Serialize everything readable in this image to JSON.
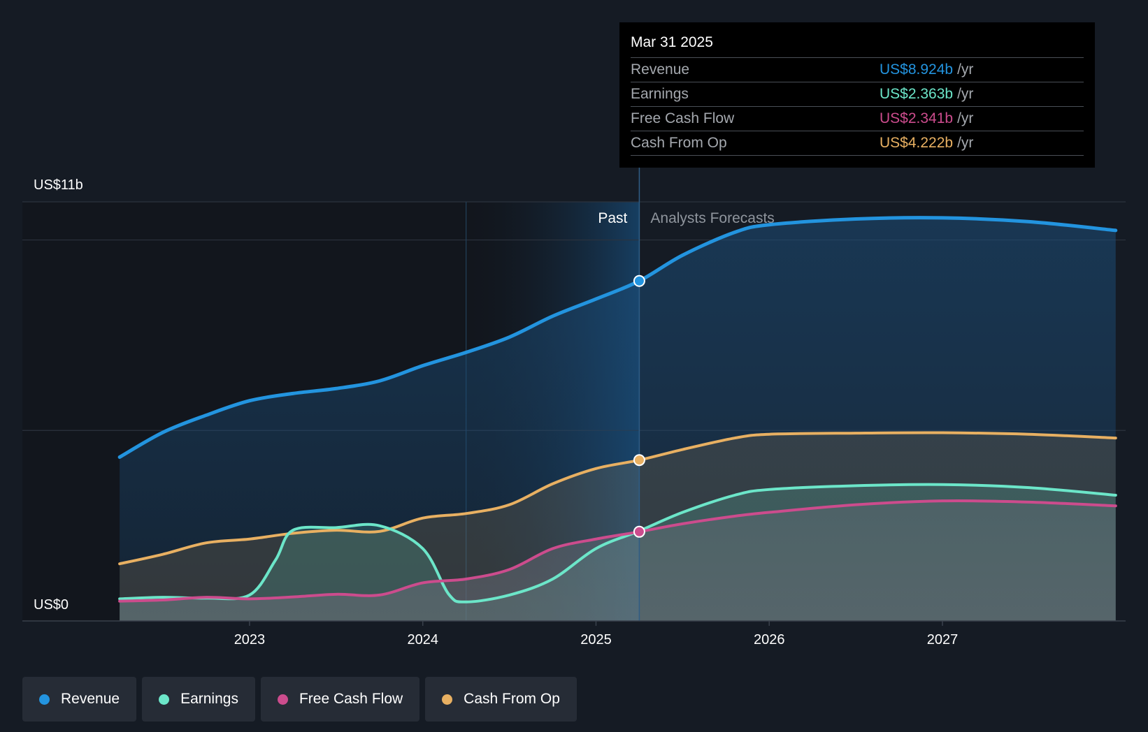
{
  "chart_data": {
    "type": "line",
    "y_max_label": "US$11b",
    "y_min_label": "US$0",
    "ylim": [
      0,
      11
    ],
    "divider_x": 2025.25,
    "past_label": "Past",
    "forecast_label": "Analysts Forecasts",
    "x_ticks": [
      2023,
      2024,
      2025,
      2026,
      2027
    ],
    "x_tick_labels": [
      "2023",
      "2024",
      "2025",
      "2026",
      "2027"
    ],
    "series": [
      {
        "name": "Revenue",
        "color": "#2394df",
        "x": [
          2022.25,
          2022.5,
          2022.75,
          2023.0,
          2023.25,
          2023.5,
          2023.75,
          2024.0,
          2024.25,
          2024.5,
          2024.75,
          2025.0,
          2025.25,
          2025.5,
          2025.8,
          2026.0,
          2026.5,
          2027.0,
          2027.5,
          2028.0
        ],
        "values": [
          4.3,
          4.95,
          5.4,
          5.78,
          5.97,
          6.1,
          6.3,
          6.7,
          7.05,
          7.45,
          8.0,
          8.45,
          8.924,
          9.6,
          10.2,
          10.4,
          10.55,
          10.58,
          10.48,
          10.25
        ]
      },
      {
        "name": "Earnings",
        "color": "#6ce6c9",
        "x": [
          2022.25,
          2022.5,
          2022.75,
          2023.0,
          2023.15,
          2023.25,
          2023.5,
          2023.75,
          2024.0,
          2024.15,
          2024.25,
          2024.5,
          2024.75,
          2025.0,
          2025.25,
          2025.5,
          2025.8,
          2026.0,
          2026.5,
          2027.0,
          2027.5,
          2028.0
        ],
        "values": [
          0.58,
          0.62,
          0.6,
          0.68,
          1.6,
          2.38,
          2.45,
          2.5,
          1.9,
          0.7,
          0.5,
          0.68,
          1.1,
          1.9,
          2.363,
          2.85,
          3.3,
          3.45,
          3.55,
          3.58,
          3.5,
          3.3
        ]
      },
      {
        "name": "Free Cash Flow",
        "color": "#cc4c8d",
        "x": [
          2022.25,
          2022.5,
          2022.75,
          2023.0,
          2023.25,
          2023.5,
          2023.75,
          2024.0,
          2024.25,
          2024.5,
          2024.75,
          2025.0,
          2025.25,
          2025.5,
          2025.8,
          2026.0,
          2026.5,
          2027.0,
          2027.5,
          2028.0
        ],
        "values": [
          0.52,
          0.55,
          0.62,
          0.58,
          0.63,
          0.7,
          0.68,
          1.0,
          1.1,
          1.35,
          1.9,
          2.15,
          2.341,
          2.55,
          2.75,
          2.85,
          3.05,
          3.15,
          3.12,
          3.02
        ]
      },
      {
        "name": "Cash From Op",
        "color": "#e8b062",
        "x": [
          2022.25,
          2022.5,
          2022.75,
          2023.0,
          2023.25,
          2023.5,
          2023.75,
          2024.0,
          2024.25,
          2024.5,
          2024.75,
          2025.0,
          2025.25,
          2025.5,
          2025.8,
          2026.0,
          2026.5,
          2027.0,
          2027.5,
          2028.0
        ],
        "values": [
          1.5,
          1.75,
          2.05,
          2.15,
          2.3,
          2.38,
          2.35,
          2.7,
          2.82,
          3.05,
          3.6,
          4.0,
          4.222,
          4.5,
          4.8,
          4.9,
          4.93,
          4.94,
          4.9,
          4.8
        ]
      }
    ]
  },
  "tooltip": {
    "date": "Mar 31 2025",
    "rows": [
      {
        "label": "Revenue",
        "value": "US$8.924b",
        "unit": "/yr",
        "color": "#2394df"
      },
      {
        "label": "Earnings",
        "value": "US$2.363b",
        "unit": "/yr",
        "color": "#6ce6c9"
      },
      {
        "label": "Free Cash Flow",
        "value": "US$2.341b",
        "unit": "/yr",
        "color": "#cc4c8d"
      },
      {
        "label": "Cash From Op",
        "value": "US$4.222b",
        "unit": "/yr",
        "color": "#e8b062"
      }
    ]
  },
  "legend": [
    {
      "label": "Revenue",
      "color": "#2394df"
    },
    {
      "label": "Earnings",
      "color": "#6ce6c9"
    },
    {
      "label": "Free Cash Flow",
      "color": "#cc4c8d"
    },
    {
      "label": "Cash From Op",
      "color": "#e8b062"
    }
  ]
}
